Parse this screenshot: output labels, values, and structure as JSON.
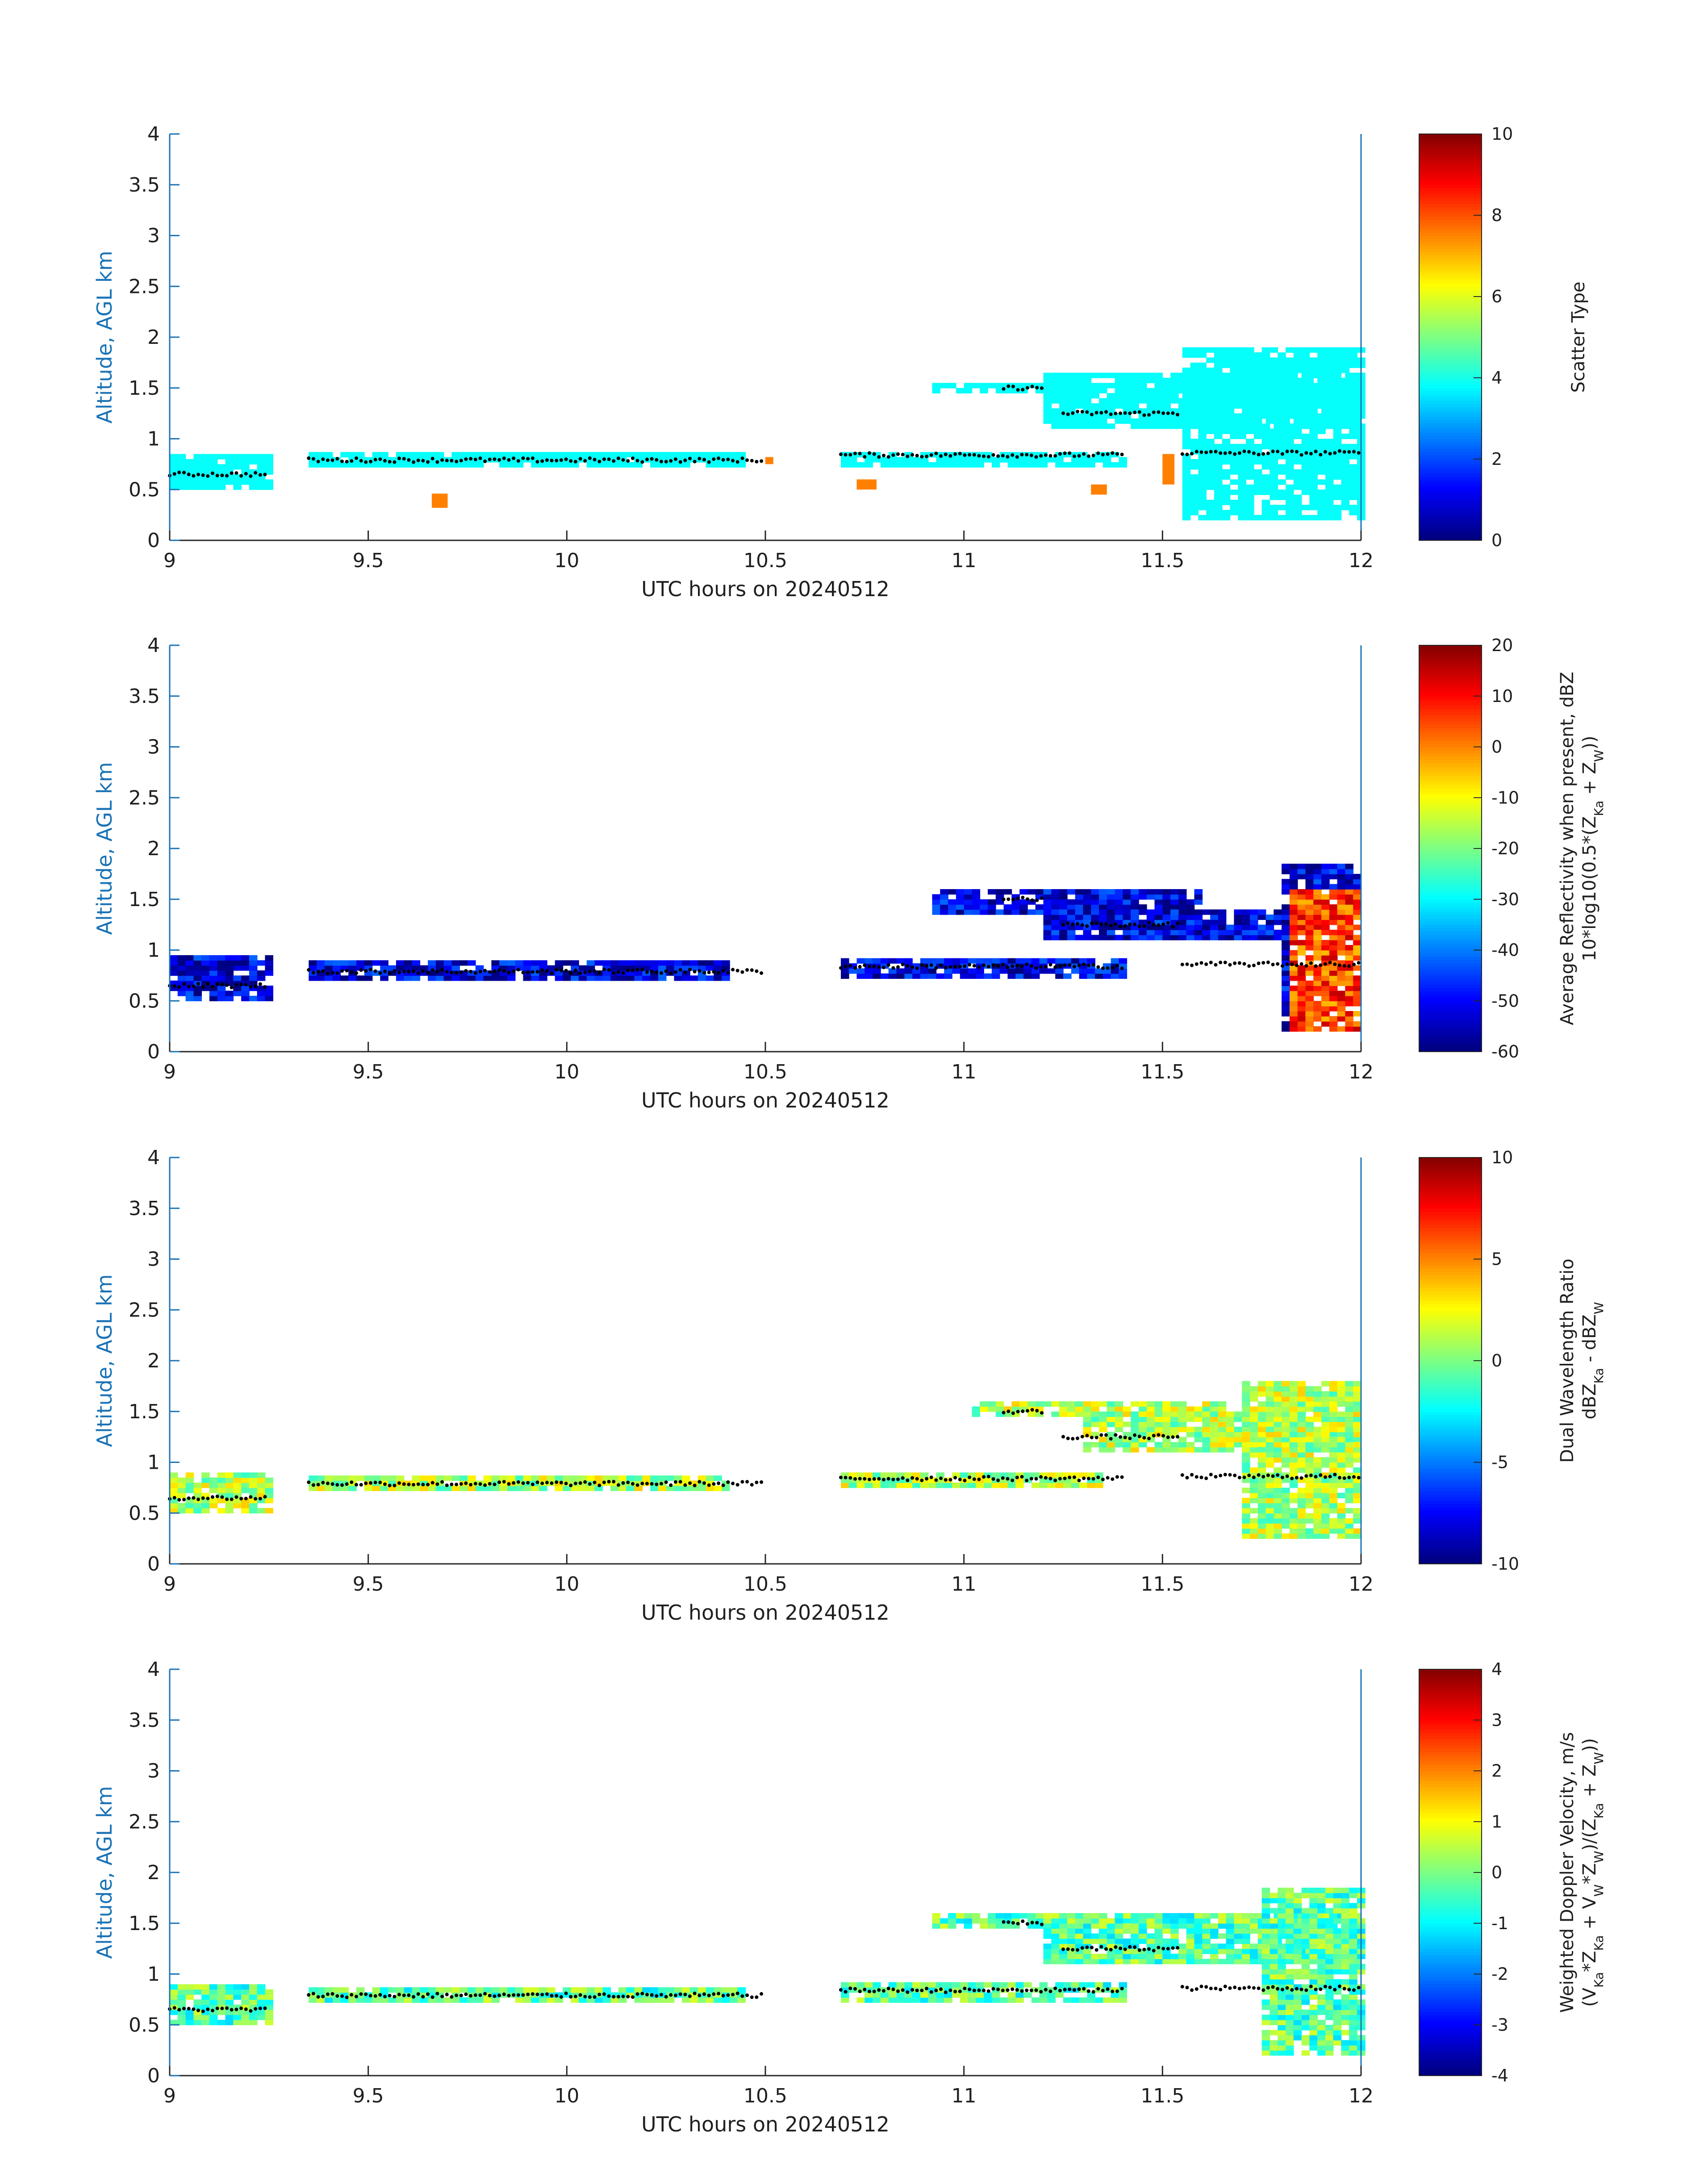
{
  "chart_data": [
    {
      "type": "heatmap",
      "xlabel": "UTC hours on 20240512",
      "ylabel": "Altitude, AGL km",
      "xlim": [
        9,
        12
      ],
      "ylim": [
        0,
        4
      ],
      "xticks": [
        "9",
        "9.5",
        "10",
        "10.5",
        "11",
        "11.5",
        "12"
      ],
      "yticks": [
        "0",
        "0.5",
        "1",
        "1.5",
        "2",
        "2.5",
        "3",
        "3.5",
        "4"
      ],
      "colorbar": {
        "label_lines": [
          "Scatter Type"
        ],
        "ticks": [
          "0",
          "2",
          "4",
          "6",
          "8",
          "10"
        ],
        "range": [
          0,
          10
        ],
        "colormap": "jet"
      },
      "dominant_value": 3.8,
      "patches": [
        {
          "x": [
            9.0,
            9.25
          ],
          "y": [
            0.5,
            0.85
          ]
        },
        {
          "x": [
            9.35,
            10.45
          ],
          "y": [
            0.72,
            0.85
          ]
        },
        {
          "x": [
            10.69,
            11.4
          ],
          "y": [
            0.72,
            0.85
          ]
        },
        {
          "x": [
            10.92,
            11.3
          ],
          "y": [
            1.45,
            1.55
          ]
        },
        {
          "x": [
            11.2,
            12.0
          ],
          "y": [
            1.1,
            1.65
          ]
        },
        {
          "x": [
            11.55,
            12.0
          ],
          "y": [
            0.2,
            1.9
          ]
        }
      ],
      "orange_patches": [
        {
          "x": [
            9.66,
            9.7
          ],
          "y": [
            0.32,
            0.46
          ],
          "value": 7.5
        },
        {
          "x": [
            10.5,
            10.52
          ],
          "y": [
            0.75,
            0.82
          ],
          "value": 7.5
        },
        {
          "x": [
            10.73,
            10.78
          ],
          "y": [
            0.5,
            0.6
          ],
          "value": 7.5
        },
        {
          "x": [
            11.5,
            11.53
          ],
          "y": [
            0.55,
            0.85
          ],
          "value": 7.5
        },
        {
          "x": [
            11.32,
            11.36
          ],
          "y": [
            0.45,
            0.55
          ],
          "value": 7.5
        }
      ],
      "cloud_base_km": [
        0.65,
        0.78,
        0.82,
        0.8,
        0.83,
        1.25,
        0.85
      ]
    },
    {
      "type": "heatmap",
      "xlabel": "UTC hours on 20240512",
      "ylabel": "Altitude, AGL km",
      "xlim": [
        9,
        12
      ],
      "ylim": [
        0,
        4
      ],
      "xticks": [
        "9",
        "9.5",
        "10",
        "10.5",
        "11",
        "11.5",
        "12"
      ],
      "yticks": [
        "0",
        "0.5",
        "1",
        "1.5",
        "2",
        "2.5",
        "3",
        "3.5",
        "4"
      ],
      "colorbar": {
        "label_lines": [
          "Average Reflectivity when present, dBZ",
          "10*log10(0.5*(Z",
          "Ka",
          " + Z",
          "W",
          "))"
        ],
        "ticks": [
          "-60",
          "-50",
          "-40",
          "-30",
          "-20",
          "-10",
          "0",
          "10",
          "20"
        ],
        "range": [
          -60,
          20
        ],
        "colormap": "jet"
      },
      "dominant_value": -52,
      "patches": [
        {
          "x": [
            9.0,
            9.25
          ],
          "y": [
            0.5,
            0.95
          ]
        },
        {
          "x": [
            9.35,
            10.4
          ],
          "y": [
            0.7,
            0.88
          ]
        },
        {
          "x": [
            10.69,
            11.4
          ],
          "y": [
            0.72,
            0.88
          ]
        },
        {
          "x": [
            10.92,
            11.6
          ],
          "y": [
            1.35,
            1.58
          ]
        },
        {
          "x": [
            11.2,
            11.9
          ],
          "y": [
            1.1,
            1.4
          ]
        },
        {
          "x": [
            11.8,
            12.0
          ],
          "y": [
            0.2,
            1.85
          ]
        }
      ],
      "high_values_near": {
        "x": [
          11.82,
          12.0
        ],
        "y": [
          0.2,
          1.6
        ],
        "value": 5
      }
    },
    {
      "type": "heatmap",
      "xlabel": "UTC hours on 20240512",
      "ylabel": "Altitude, AGL km",
      "xlim": [
        9,
        12
      ],
      "ylim": [
        0,
        4
      ],
      "xticks": [
        "9",
        "9.5",
        "10",
        "10.5",
        "11",
        "11.5",
        "12"
      ],
      "yticks": [
        "0",
        "0.5",
        "1",
        "1.5",
        "2",
        "2.5",
        "3",
        "3.5",
        "4"
      ],
      "colorbar": {
        "label_lines": [
          "Dual Wavelength Ratio",
          "dBZ",
          "Ka",
          " - dBZ",
          "W"
        ],
        "ticks": [
          "-10",
          "-5",
          "0",
          "5",
          "10"
        ],
        "range": [
          -10,
          10
        ],
        "colormap": "jet"
      },
      "dominant_value": 1,
      "patches": [
        {
          "x": [
            9.0,
            9.25
          ],
          "y": [
            0.5,
            0.9
          ]
        },
        {
          "x": [
            9.35,
            10.4
          ],
          "y": [
            0.72,
            0.85
          ]
        },
        {
          "x": [
            10.69,
            11.35
          ],
          "y": [
            0.75,
            0.9
          ]
        },
        {
          "x": [
            11.02,
            11.65
          ],
          "y": [
            1.45,
            1.6
          ]
        },
        {
          "x": [
            11.3,
            12.0
          ],
          "y": [
            1.1,
            1.5
          ]
        },
        {
          "x": [
            11.7,
            12.0
          ],
          "y": [
            0.25,
            1.8
          ]
        }
      ]
    },
    {
      "type": "heatmap",
      "xlabel": "UTC hours on 20240512",
      "ylabel": "Altitude, AGL km",
      "xlim": [
        9,
        12
      ],
      "ylim": [
        0,
        4
      ],
      "xticks": [
        "9",
        "9.5",
        "10",
        "10.5",
        "11",
        "11.5",
        "12"
      ],
      "yticks": [
        "0",
        "0.5",
        "1",
        "1.5",
        "2",
        "2.5",
        "3",
        "3.5",
        "4"
      ],
      "colorbar": {
        "label_lines": [
          "Weighted Doppler Velocity, m/s",
          "(V",
          "Ka",
          "*Z",
          "Ka",
          " + V",
          "W",
          "*Z",
          "W",
          ")/(Z",
          "Ka",
          " + Z",
          "W",
          "))"
        ],
        "ticks": [
          "-4",
          "-3",
          "-2",
          "-1",
          "0",
          "1",
          "2",
          "3",
          "4"
        ],
        "range": [
          -4,
          4
        ],
        "colormap": "jet"
      },
      "dominant_value": -0.3,
      "patches": [
        {
          "x": [
            9.0,
            9.25
          ],
          "y": [
            0.5,
            0.9
          ]
        },
        {
          "x": [
            9.35,
            10.45
          ],
          "y": [
            0.72,
            0.85
          ]
        },
        {
          "x": [
            10.69,
            11.4
          ],
          "y": [
            0.72,
            0.88
          ]
        },
        {
          "x": [
            10.92,
            11.6
          ],
          "y": [
            1.45,
            1.58
          ]
        },
        {
          "x": [
            11.2,
            12.0
          ],
          "y": [
            1.1,
            1.6
          ]
        },
        {
          "x": [
            11.75,
            12.0
          ],
          "y": [
            0.2,
            1.85
          ]
        }
      ]
    }
  ]
}
